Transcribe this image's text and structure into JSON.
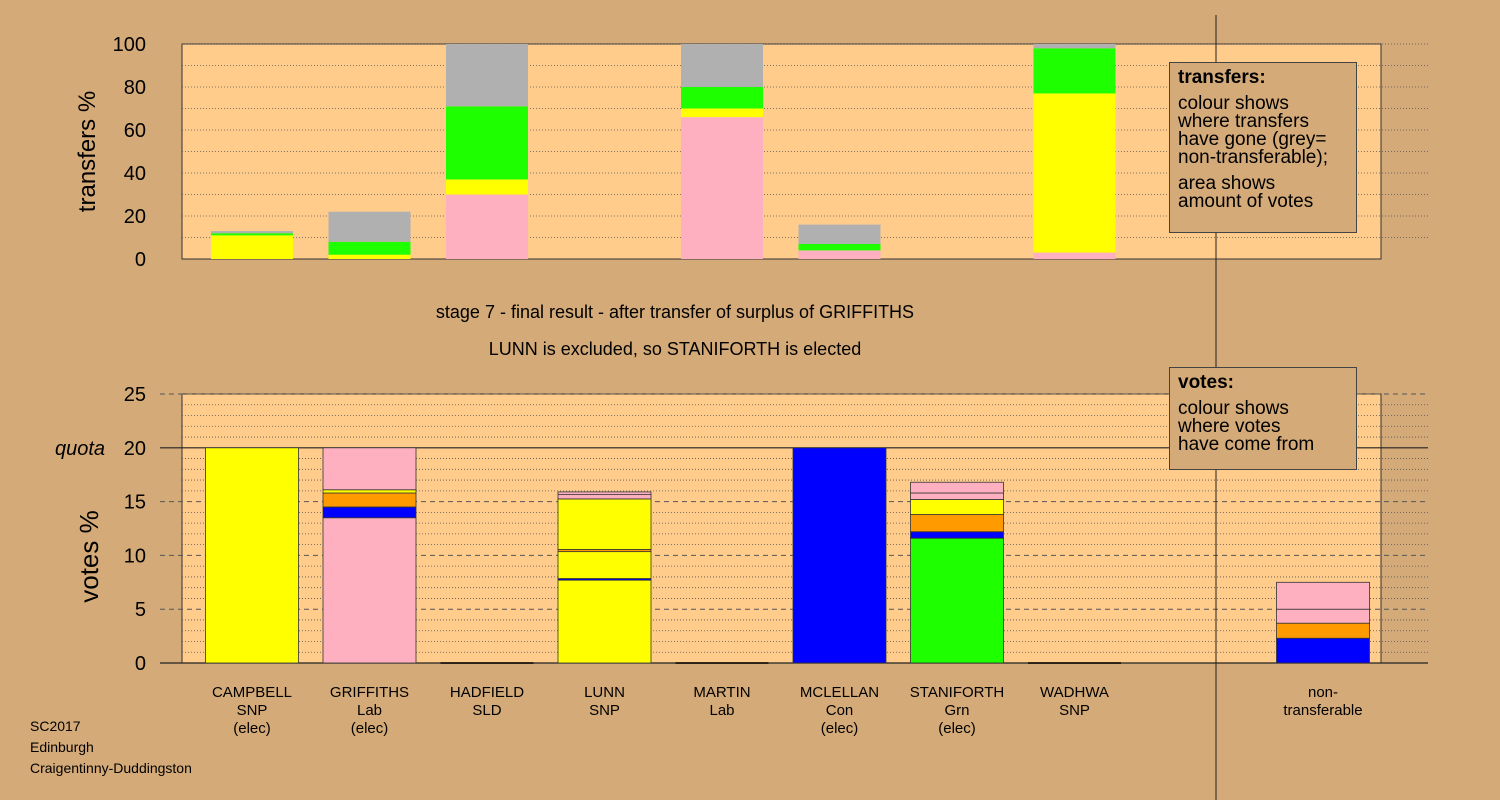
{
  "chart_data": [
    {
      "type": "bar",
      "stacked": true,
      "ylabel": "transfers %",
      "ylim": [
        0,
        100
      ],
      "yticks": [
        0,
        20,
        40,
        60,
        80,
        100
      ],
      "grid": "dotted every 10",
      "categories": [
        "CAMPBELL",
        "GRIFFITHS",
        "HADFIELD",
        "LUNN",
        "MARTIN",
        "MCLELLAN",
        "STANIFORTH",
        "WADHWA"
      ],
      "bars": [
        [
          {
            "color": "#FFFF00",
            "value": 11
          },
          {
            "color": "#1EFF00",
            "value": 1
          },
          {
            "color": "#B0B0B0",
            "value": 1
          }
        ],
        [
          {
            "color": "#FFFF00",
            "value": 2
          },
          {
            "color": "#1EFF00",
            "value": 6
          },
          {
            "color": "#B0B0B0",
            "value": 14
          }
        ],
        [
          {
            "color": "#FFB0C0",
            "value": 30
          },
          {
            "color": "#FFFF00",
            "value": 7
          },
          {
            "color": "#1EFF00",
            "value": 34
          },
          {
            "color": "#B0B0B0",
            "value": 29
          }
        ],
        [],
        [
          {
            "color": "#FFB0C0",
            "value": 66
          },
          {
            "color": "#FFFF00",
            "value": 4
          },
          {
            "color": "#1EFF00",
            "value": 10
          },
          {
            "color": "#B0B0B0",
            "value": 20
          }
        ],
        [
          {
            "color": "#FFB0C0",
            "value": 4
          },
          {
            "color": "#1EFF00",
            "value": 3
          },
          {
            "color": "#B0B0B0",
            "value": 9
          }
        ],
        [],
        [
          {
            "color": "#FFB0C0",
            "value": 3
          },
          {
            "color": "#FFFF00",
            "value": 74
          },
          {
            "color": "#1EFF00",
            "value": 21
          },
          {
            "color": "#B0B0B0",
            "value": 2
          }
        ]
      ]
    },
    {
      "type": "bar",
      "stacked": true,
      "ylabel": "votes %",
      "ylim": [
        0,
        25
      ],
      "yticks": [
        0,
        5,
        10,
        15,
        20,
        25
      ],
      "quota": 20,
      "quota_label": "quota",
      "grid": "dashed every 5, dotted every 1",
      "categories": [
        "CAMPBELL",
        "GRIFFITHS",
        "HADFIELD",
        "LUNN",
        "MARTIN",
        "MCLELLAN",
        "STANIFORTH",
        "WADHWA",
        "non-transferable"
      ],
      "bars": [
        [
          {
            "color": "#FFFF00",
            "value": 20
          }
        ],
        [
          {
            "color": "#FFB0C0",
            "value": 13.5
          },
          {
            "color": "#0000FF",
            "value": 1
          },
          {
            "color": "#FF9A00",
            "value": 1.3
          },
          {
            "color": "#FFFF00",
            "value": 0.3
          },
          {
            "color": "#FFB0C0",
            "value": 3.9
          }
        ],
        [],
        [
          {
            "color": "#FFFF00",
            "value": 7.7
          },
          {
            "color": "#0000FF",
            "value": 0.15
          },
          {
            "color": "#FFFF00",
            "value": 2.5
          },
          {
            "color": "#FF9A00",
            "value": 0.2
          },
          {
            "color": "#FFFF00",
            "value": 4.7
          },
          {
            "color": "#FFB0C0",
            "value": 0.4
          },
          {
            "color": "#FFB0C0",
            "value": 0.25
          }
        ],
        [],
        [
          {
            "color": "#0000FF",
            "value": 20
          }
        ],
        [
          {
            "color": "#1EFF00",
            "value": 11.6
          },
          {
            "color": "#0000FF",
            "value": 0.6
          },
          {
            "color": "#FF9A00",
            "value": 1.6
          },
          {
            "color": "#FFFF00",
            "value": 1.4
          },
          {
            "color": "#FFB0C0",
            "value": 0.6
          },
          {
            "color": "#FFB0C0",
            "value": 1
          }
        ],
        [],
        [
          {
            "color": "#0000FF",
            "value": 2.3
          },
          {
            "color": "#FF9A00",
            "value": 1.4
          },
          {
            "color": "#FFB0C0",
            "value": 1.3
          },
          {
            "color": "#FFB0C0",
            "value": 2.5
          }
        ]
      ]
    }
  ],
  "candidates": [
    {
      "name": "CAMPBELL",
      "party": "SNP",
      "status": "(elec)"
    },
    {
      "name": "GRIFFITHS",
      "party": "Lab",
      "status": "(elec)"
    },
    {
      "name": "HADFIELD",
      "party": "SLD",
      "status": ""
    },
    {
      "name": "LUNN",
      "party": "SNP",
      "status": ""
    },
    {
      "name": "MARTIN",
      "party": "Lab",
      "status": ""
    },
    {
      "name": "MCLELLAN",
      "party": "Con",
      "status": "(elec)"
    },
    {
      "name": "STANIFORTH",
      "party": "Grn",
      "status": "(elec)"
    },
    {
      "name": "WADHWA",
      "party": "SNP",
      "status": ""
    }
  ],
  "nontransferable_label": [
    "non-",
    "transferable"
  ],
  "stage_title": "stage 7 - final result - after transfer of surplus of GRIFFITHS",
  "stage_subtitle": "LUNN is excluded, so STANIFORTH is elected",
  "legend_transfers": {
    "title": "transfers:",
    "lines1": [
      "colour shows",
      "where transfers",
      "have gone (grey=",
      "non-transferable);"
    ],
    "lines2": [
      "area shows",
      "amount of votes"
    ]
  },
  "legend_votes": {
    "title": "votes:",
    "lines1": [
      "colour shows",
      "where votes",
      "have come from"
    ]
  },
  "info": {
    "line1": "SC2017",
    "line2": "Edinburgh",
    "line3": "Craigentinny-Duddingston"
  },
  "colors": {
    "background": "#D4AA78",
    "plot": "#FFCC8C"
  }
}
